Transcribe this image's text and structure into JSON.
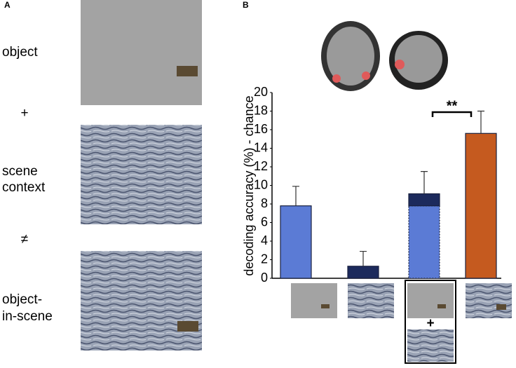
{
  "panel_a": {
    "label": "A",
    "texts": [
      "object",
      "+",
      "scene",
      "context",
      "≠",
      "object-",
      "in-scene"
    ]
  },
  "chart_data": {
    "type": "bar",
    "panel_label": "B",
    "ylabel": "decoding accuracy (%) - chance",
    "categories": [
      null,
      null,
      null,
      null
    ],
    "bars": [
      {
        "segments": [
          {
            "value": 7.8,
            "color": "#5b7bd5"
          }
        ],
        "error": 2.1
      },
      {
        "segments": [
          {
            "value": 1.3,
            "color": "#1c2a5c"
          }
        ],
        "error": 1.6
      },
      {
        "segments": [
          {
            "value": 7.8,
            "color": "#5b7bd5",
            "dashed": true
          },
          {
            "value": 1.3,
            "color": "#1c2a5c"
          }
        ],
        "error": 2.4
      },
      {
        "segments": [
          {
            "value": 15.6,
            "color": "#c55a1f"
          }
        ],
        "error": 2.4
      }
    ],
    "significance": {
      "between": [
        2,
        3
      ],
      "label": "**"
    },
    "inset_plus": "+",
    "ylim": [
      0,
      20
    ],
    "yticks": [
      0,
      2,
      4,
      6,
      8,
      10,
      12,
      14,
      16,
      18,
      20
    ]
  }
}
